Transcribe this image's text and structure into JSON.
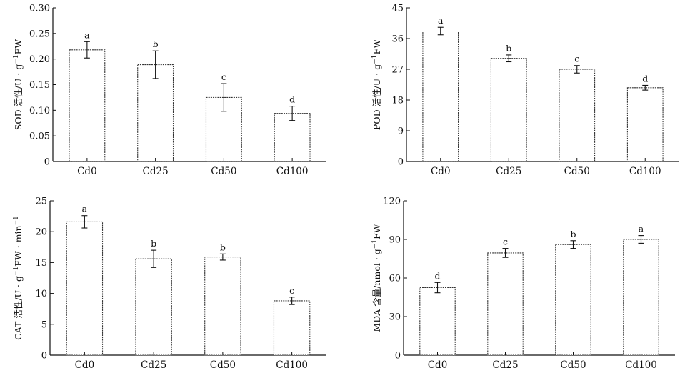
{
  "chart_data": [
    {
      "type": "bar",
      "panel": "SOD",
      "ylabel_main": "SOD 活性/U · g",
      "ylabel_sup": "−1",
      "ylabel_tail": "FW",
      "categories": [
        "Cd0",
        "Cd25",
        "Cd50",
        "Cd100"
      ],
      "values": [
        0.218,
        0.189,
        0.125,
        0.094
      ],
      "errors": [
        0.016,
        0.027,
        0.027,
        0.014
      ],
      "labels": [
        "a",
        "b",
        "c",
        "d"
      ],
      "ylim": [
        0,
        0.3
      ],
      "yticks": [
        "0",
        "0.05",
        "0.10",
        "0.15",
        "0.20",
        "0.25",
        "0.30"
      ]
    },
    {
      "type": "bar",
      "panel": "POD",
      "ylabel_main": "POD 活性/U · g",
      "ylabel_sup": "−1",
      "ylabel_tail": "FW",
      "categories": [
        "Cd0",
        "Cd25",
        "Cd50",
        "Cd100"
      ],
      "values": [
        38.2,
        30.2,
        27.0,
        21.6
      ],
      "errors": [
        1.1,
        1.0,
        1.1,
        0.7
      ],
      "labels": [
        "a",
        "b",
        "c",
        "d"
      ],
      "ylim": [
        0,
        45
      ],
      "yticks": [
        "0",
        "9",
        "18",
        "27",
        "36",
        "45"
      ]
    },
    {
      "type": "bar",
      "panel": "CAT",
      "ylabel_main": "CAT 活性/U · g",
      "ylabel_sup": "−1",
      "ylabel_tail": "FW · min",
      "ylabel_sup2": "−1",
      "categories": [
        "Cd0",
        "Cd25",
        "Cd50",
        "Cd100"
      ],
      "values": [
        21.6,
        15.6,
        15.9,
        8.8
      ],
      "errors": [
        1.0,
        1.4,
        0.5,
        0.6
      ],
      "labels": [
        "a",
        "b",
        "b",
        "c"
      ],
      "ylim": [
        0,
        25
      ],
      "yticks": [
        "0",
        "5",
        "10",
        "15",
        "20",
        "25"
      ]
    },
    {
      "type": "bar",
      "panel": "MDA",
      "ylabel_main": "MDA 含量/nmol · g",
      "ylabel_sup": "−1",
      "ylabel_tail": "FW",
      "categories": [
        "Cd0",
        "Cd25",
        "Cd50",
        "Cd100"
      ],
      "values": [
        52.5,
        79.5,
        86.0,
        90.0
      ],
      "errors": [
        4.0,
        3.5,
        3.0,
        3.0
      ],
      "labels": [
        "d",
        "c",
        "b",
        "a"
      ],
      "ylim": [
        0,
        120
      ],
      "yticks": [
        "0",
        "30",
        "60",
        "90",
        "120"
      ]
    }
  ]
}
